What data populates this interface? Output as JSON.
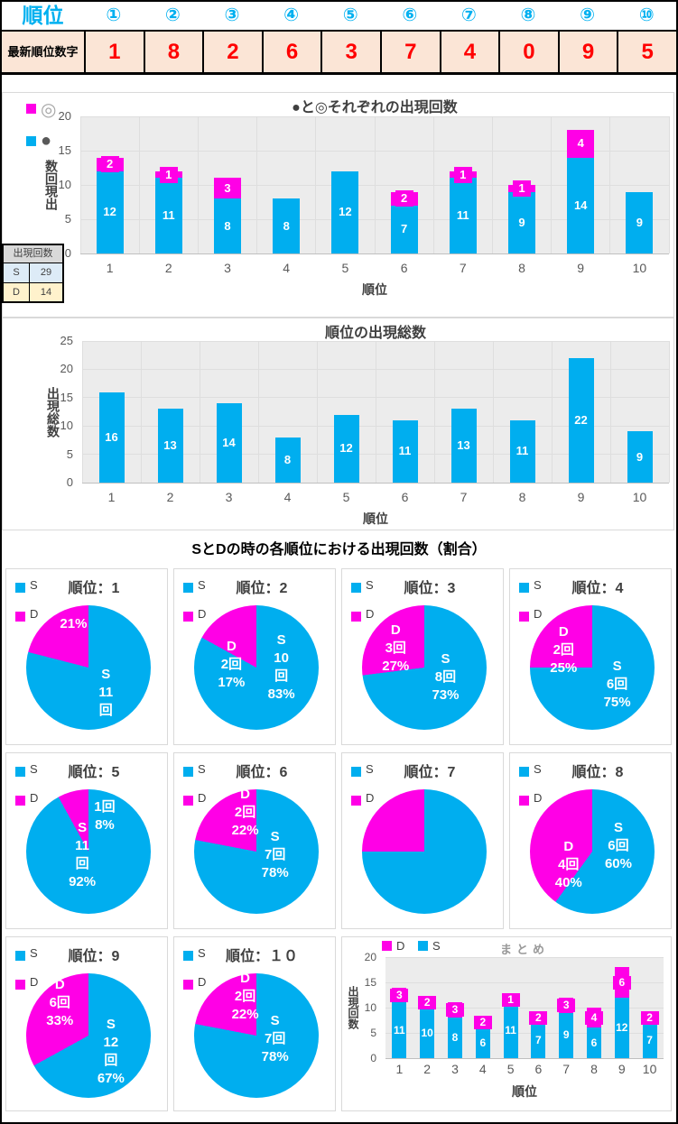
{
  "colors": {
    "s": "#00AEEF",
    "d": "#FF00E6",
    "plot_bg": "#ECECEC",
    "grid": "#DEDEDE",
    "axis": "#BFBFBF",
    "tick": "#595959",
    "title": "#404040",
    "red": "#FF0000",
    "cyan_text": "#00B0F0",
    "peach_bg": "#FBE5D6",
    "mini_header_bg": "#D9D9D9",
    "mini_row_bgs": [
      "#DDEBF7",
      "#FFF2CC"
    ],
    "legend_maru_outline": "#A6A6A6",
    "legend_maru_fill": "#595959",
    "summary_title_gray": "#999999"
  },
  "header_table": {
    "title": "順位",
    "columns": [
      "①",
      "②",
      "③",
      "④",
      "⑤",
      "⑥",
      "⑦",
      "⑧",
      "⑨",
      "⑩"
    ],
    "row_label": "最新順位数字",
    "values": [
      "1",
      "8",
      "2",
      "6",
      "3",
      "7",
      "4",
      "0",
      "9",
      "5"
    ]
  },
  "mini_table": {
    "header": "出現回数",
    "rows": [
      [
        "S",
        "29"
      ],
      [
        "D",
        "14"
      ]
    ]
  },
  "chart_data": [
    {
      "id": "stacked-counts",
      "type": "bar",
      "stacked": true,
      "title": "●と◎それぞれの出現回数",
      "xlabel": "順位",
      "ylabel": "出現回数",
      "ylim": [
        0,
        20
      ],
      "yticks": [
        0,
        5,
        10,
        15,
        20
      ],
      "grid": "both",
      "categories": [
        "1",
        "2",
        "3",
        "4",
        "5",
        "6",
        "7",
        "8",
        "9",
        "10"
      ],
      "series": [
        {
          "name": "●",
          "color": "s",
          "values": [
            12,
            11,
            8,
            8,
            12,
            7,
            11,
            9,
            14,
            9
          ]
        },
        {
          "name": "◎",
          "color": "d",
          "values": [
            2,
            1,
            3,
            0,
            0,
            2,
            1,
            1,
            4,
            0
          ]
        }
      ],
      "legend": [
        {
          "label": "◎",
          "color": "d"
        },
        {
          "label": "●",
          "color": "s"
        }
      ],
      "legend_position": "top-left"
    },
    {
      "id": "rank-totals",
      "type": "bar",
      "stacked": false,
      "title": "順位の出現総数",
      "xlabel": "順位",
      "ylabel": "出現総数",
      "ylim": [
        0,
        25
      ],
      "yticks": [
        0,
        5,
        10,
        15,
        20,
        25
      ],
      "grid": "both",
      "categories": [
        "1",
        "2",
        "3",
        "4",
        "5",
        "6",
        "7",
        "8",
        "9",
        "10"
      ],
      "series": [
        {
          "name": "出現総数",
          "color": "s",
          "values": [
            16,
            13,
            14,
            8,
            12,
            11,
            13,
            11,
            22,
            9
          ]
        }
      ],
      "legend": []
    },
    {
      "id": "sd-rank-pies",
      "type": "pie",
      "section_title": "SとDの時の各順位における出現回数（割合）",
      "legend": [
        "S",
        "D"
      ],
      "pies": [
        {
          "title": "順位：1",
          "s_pct": 79,
          "d_pct": 21,
          "s_label": [
            "S",
            "11",
            "回"
          ],
          "d_label": [
            "21%"
          ],
          "s_pos": [
            64,
            70
          ],
          "d_pos": [
            38,
            15
          ]
        },
        {
          "title": "順位：2",
          "s_pct": 83,
          "d_pct": 17,
          "s_label": [
            "S",
            "10",
            "回",
            "83%"
          ],
          "d_label": [
            "D",
            "2回",
            "17%"
          ],
          "s_pos": [
            70,
            50
          ],
          "d_pos": [
            30,
            48
          ]
        },
        {
          "title": "順位：3",
          "s_pct": 73,
          "d_pct": 27,
          "s_label": [
            "S",
            "8回",
            "73%"
          ],
          "d_label": [
            "D",
            "3回",
            "27%"
          ],
          "s_pos": [
            67,
            58
          ],
          "d_pos": [
            27,
            35
          ]
        },
        {
          "title": "順位：4",
          "s_pct": 75,
          "d_pct": 25,
          "s_label": [
            "S",
            "6回",
            "75%"
          ],
          "d_label": [
            "D",
            "2回",
            "25%"
          ],
          "s_pos": [
            70,
            64
          ],
          "d_pos": [
            27,
            36
          ]
        },
        {
          "title": "順位：5",
          "s_pct": 92,
          "d_pct": 8,
          "s_label": [
            "S",
            "11",
            "回",
            "92%"
          ],
          "d_label": [
            "1回",
            "8%"
          ],
          "s_pos": [
            45,
            53
          ],
          "d_pos": [
            63,
            22
          ]
        },
        {
          "title": "順位：6",
          "s_pct": 78,
          "d_pct": 22,
          "s_label": [
            "S",
            "7回",
            "78%"
          ],
          "d_label": [
            "D",
            "2回",
            "22%"
          ],
          "s_pos": [
            65,
            53
          ],
          "d_pos": [
            41,
            19
          ]
        },
        {
          "title": "順位：7",
          "s_pct": 75,
          "d_pct": 25,
          "s_label": [],
          "d_label": [],
          "s_pos": [
            0,
            0
          ],
          "d_pos": [
            0,
            0
          ]
        },
        {
          "title": "順位：8",
          "s_pct": 60,
          "d_pct": 40,
          "s_label": [
            "S",
            "6回",
            "60%"
          ],
          "d_label": [
            "D",
            "4回",
            "40%"
          ],
          "s_pos": [
            71,
            46
          ],
          "d_pos": [
            31,
            61
          ]
        },
        {
          "title": "順位：9",
          "s_pct": 67,
          "d_pct": 33,
          "s_label": [
            "S",
            "12",
            "回",
            "67%"
          ],
          "d_label": [
            "D",
            "6回",
            "33%"
          ],
          "s_pos": [
            68,
            63
          ],
          "d_pos": [
            27,
            24
          ]
        },
        {
          "title": "順位：１０",
          "s_pct": 78,
          "d_pct": 22,
          "s_label": [
            "S",
            "7回",
            "78%"
          ],
          "d_label": [
            "D",
            "2回",
            "22%"
          ],
          "s_pos": [
            65,
            53
          ],
          "d_pos": [
            41,
            19
          ]
        }
      ]
    },
    {
      "id": "summary",
      "type": "bar",
      "stacked": true,
      "title": "まとめ",
      "xlabel": "順位",
      "ylabel": "出現回数",
      "ylim": [
        0,
        20
      ],
      "yticks": [
        0,
        5,
        10,
        15,
        20
      ],
      "grid": "h",
      "categories": [
        "1",
        "2",
        "3",
        "4",
        "5",
        "6",
        "7",
        "8",
        "9",
        "10"
      ],
      "series": [
        {
          "name": "S",
          "color": "s",
          "values": [
            11,
            10,
            8,
            6,
            11,
            7,
            9,
            6,
            12,
            7
          ]
        },
        {
          "name": "D",
          "color": "d",
          "values": [
            3,
            2,
            3,
            2,
            1,
            2,
            3,
            4,
            6,
            2
          ]
        }
      ],
      "legend": [
        {
          "label": "D",
          "color": "d"
        },
        {
          "label": "S",
          "color": "s"
        }
      ],
      "legend_position": "top-left"
    }
  ]
}
